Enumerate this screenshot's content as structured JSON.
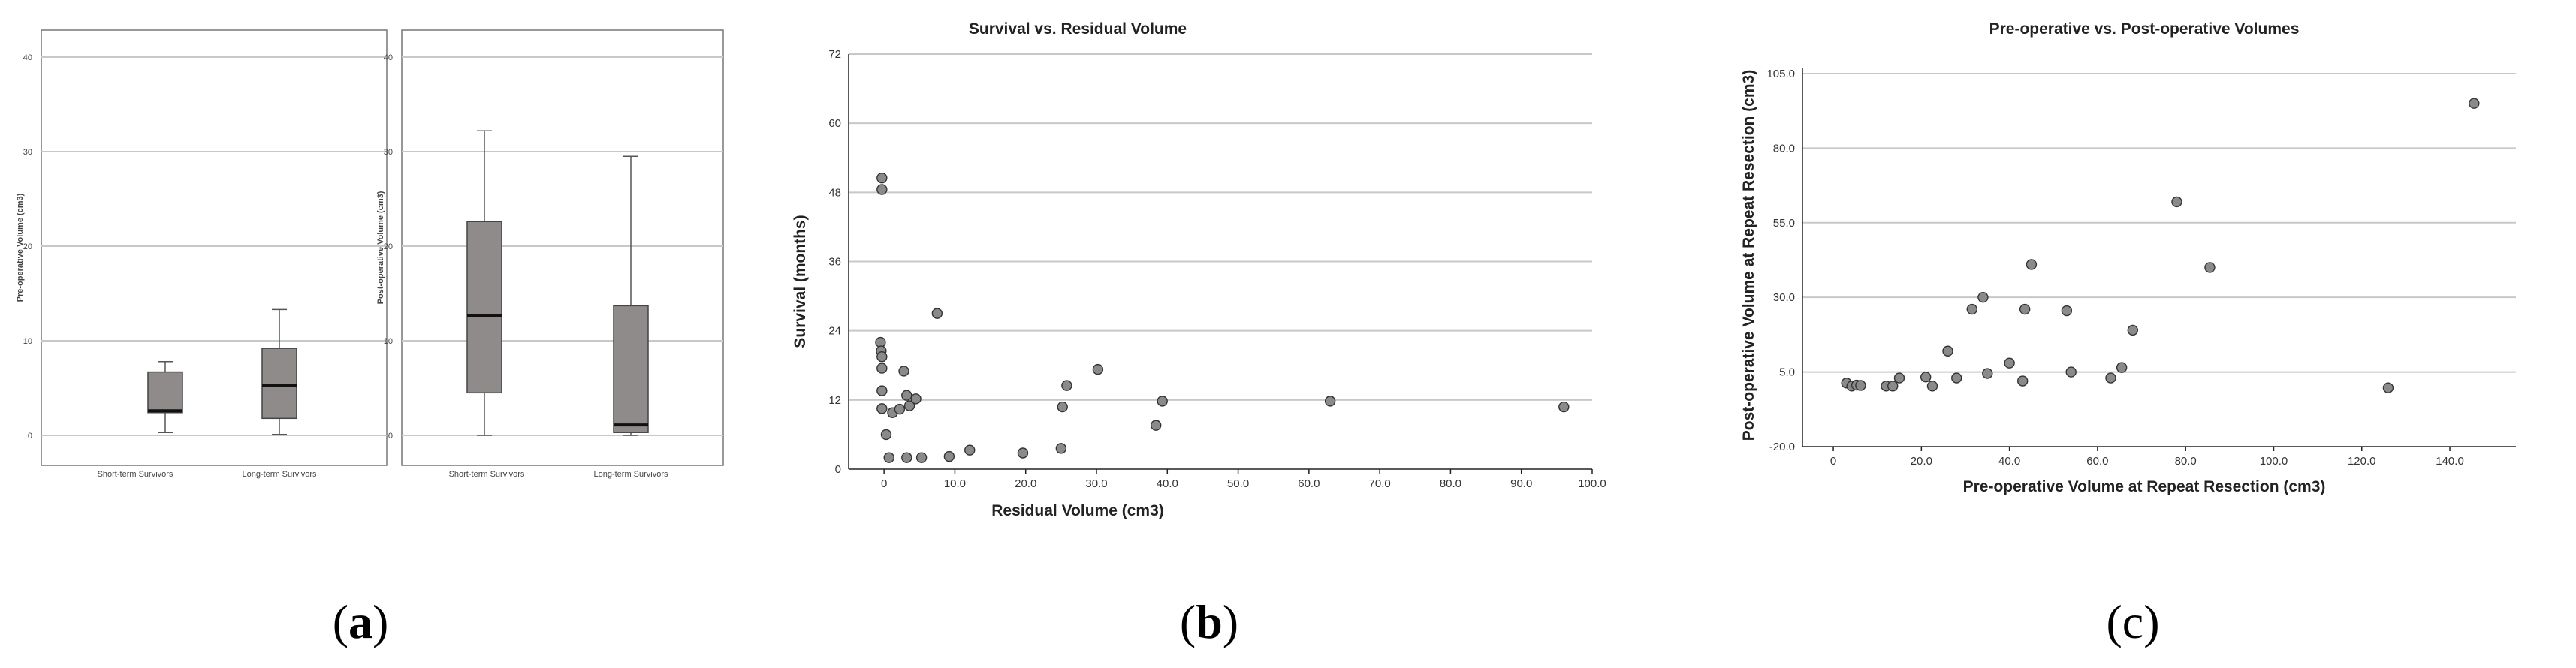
{
  "panels": {
    "a": {
      "caption": "(a)",
      "left": {
        "ylabel": "Pre-operative Volume (cm3)",
        "yticks": [
          "0",
          "10",
          "20",
          "30",
          "40"
        ]
      },
      "right": {
        "ylabel": "Post-operative Volume (cm3)",
        "yticks": [
          "0",
          "10",
          "20",
          "30",
          "40"
        ]
      },
      "categories": [
        "Short-term Survivors",
        "Long-term Survivors"
      ]
    },
    "b": {
      "caption": "(b)"
    },
    "c": {
      "caption": "(c)"
    }
  },
  "chart_data": [
    {
      "type": "box",
      "ylabel": "Pre-operative Volume (cm3)",
      "ylim": [
        0,
        40
      ],
      "categories": [
        "Short-term Survivors",
        "Long-term Survivors"
      ],
      "boxes": [
        {
          "min": 0.3,
          "q1": 2.4,
          "median": 2.6,
          "q3": 6.7,
          "max": 7.8
        },
        {
          "min": 0.1,
          "q1": 1.8,
          "median": 5.3,
          "q3": 9.2,
          "max": 13.3
        }
      ]
    },
    {
      "type": "box",
      "ylabel": "Post-operative Volume (cm3)",
      "ylim": [
        0,
        40
      ],
      "categories": [
        "Short-term Survivors",
        "Long-term Survivors"
      ],
      "boxes": [
        {
          "min": 0.0,
          "q1": 4.5,
          "median": 12.7,
          "q3": 22.6,
          "max": 32.2
        },
        {
          "min": 0.0,
          "q1": 0.3,
          "median": 1.1,
          "q3": 13.7,
          "max": 29.5
        }
      ]
    },
    {
      "type": "scatter",
      "title": "Survival vs. Residual Volume",
      "xlabel": "Residual Volume (cm3)",
      "ylabel": "Survival (months)",
      "xlim": [
        -5,
        100
      ],
      "ylim": [
        0,
        72
      ],
      "xticks": [
        "0",
        "10.0",
        "20.0",
        "30.0",
        "40.0",
        "50.0",
        "60.0",
        "70.0",
        "80.0",
        "90.0",
        "100.0"
      ],
      "yticks": [
        "0",
        "12",
        "24",
        "36",
        "48",
        "60",
        "72"
      ],
      "points": [
        [
          -0.3,
          50.5
        ],
        [
          -0.3,
          48.5
        ],
        [
          -0.5,
          22
        ],
        [
          -0.4,
          20.5
        ],
        [
          -0.3,
          19.5
        ],
        [
          -0.3,
          17.5
        ],
        [
          -0.3,
          13.6
        ],
        [
          -0.3,
          10.5
        ],
        [
          0.3,
          6
        ],
        [
          1.2,
          9.8
        ],
        [
          2.2,
          10.4
        ],
        [
          2.8,
          17
        ],
        [
          3.2,
          12.8
        ],
        [
          3.6,
          11
        ],
        [
          4.5,
          12.2
        ],
        [
          7.5,
          27
        ],
        [
          0.7,
          2
        ],
        [
          3.2,
          2
        ],
        [
          5.3,
          2
        ],
        [
          9.2,
          2.2
        ],
        [
          12.1,
          3.3
        ],
        [
          19.6,
          2.8
        ],
        [
          25.0,
          3.6
        ],
        [
          25.2,
          10.8
        ],
        [
          25.8,
          14.5
        ],
        [
          30.2,
          17.3
        ],
        [
          38.4,
          7.6
        ],
        [
          39.3,
          11.8
        ],
        [
          63.0,
          11.8
        ],
        [
          96.0,
          10.8
        ]
      ]
    },
    {
      "type": "scatter",
      "title": "Pre-operative vs. Post-operative Volumes",
      "xlabel": "Pre-operative Volume at Repeat Resection (cm3)",
      "ylabel": "Post-operative Volume at Repeat Resection (cm3)",
      "xlim": [
        -7,
        155
      ],
      "ylim": [
        -20,
        107
      ],
      "xticks": [
        "0",
        "20.0",
        "40.0",
        "60.0",
        "80.0",
        "100.0",
        "120.0",
        "140.0"
      ],
      "yticks": [
        "-20.0",
        "5.0",
        "30.0",
        "55.0",
        "80.0",
        "105.0"
      ],
      "points": [
        [
          3.0,
          1.3
        ],
        [
          4.2,
          0.3
        ],
        [
          5.3,
          0.6
        ],
        [
          6.2,
          0.5
        ],
        [
          12.0,
          0.3
        ],
        [
          13.5,
          0.3
        ],
        [
          15.0,
          3.0
        ],
        [
          21.0,
          3.3
        ],
        [
          22.5,
          0.3
        ],
        [
          26.0,
          12.0
        ],
        [
          28.0,
          3.0
        ],
        [
          31.5,
          26.0
        ],
        [
          34.0,
          30.0
        ],
        [
          35.0,
          4.5
        ],
        [
          40.0,
          8.0
        ],
        [
          43.0,
          2.0
        ],
        [
          43.5,
          26.0
        ],
        [
          45.0,
          41.0
        ],
        [
          53.0,
          25.5
        ],
        [
          54.0,
          5.0
        ],
        [
          63.0,
          3.0
        ],
        [
          65.5,
          6.5
        ],
        [
          68.0,
          19.0
        ],
        [
          78.0,
          62.0
        ],
        [
          85.5,
          40.0
        ],
        [
          126.0,
          -0.3
        ],
        [
          145.5,
          95.0
        ]
      ]
    }
  ]
}
